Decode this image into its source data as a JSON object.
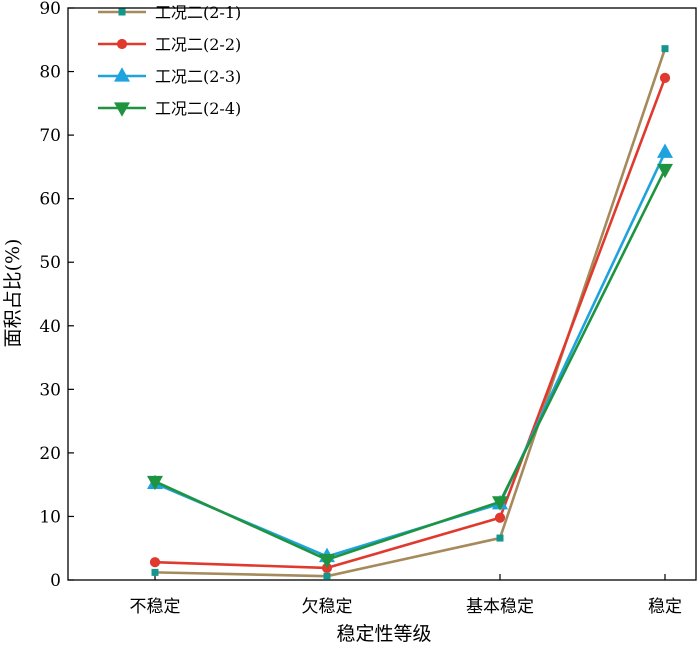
{
  "chart_data": {
    "type": "line",
    "title": "",
    "xlabel": "稳定性等级",
    "ylabel": "面积占比(%)",
    "categories": [
      "不稳定",
      "欠稳定",
      "基本稳定",
      "稳定"
    ],
    "ylim": [
      0,
      90
    ],
    "yticks": [
      0,
      10,
      20,
      30,
      40,
      50,
      60,
      70,
      80,
      90
    ],
    "grid": false,
    "legend_position": "top-left",
    "series": [
      {
        "name": "工况二(2-1)",
        "values": [
          1.2,
          0.6,
          6.6,
          83.6
        ],
        "line_color": "#a58a5c",
        "marker_color": "#14968c",
        "marker": "square"
      },
      {
        "name": "工况二(2-2)",
        "values": [
          2.8,
          1.9,
          9.8,
          79.0
        ],
        "line_color": "#e03a2f",
        "marker_color": "#e03a2f",
        "marker": "circle"
      },
      {
        "name": "工况二(2-3)",
        "values": [
          15.2,
          3.7,
          12.0,
          67.3
        ],
        "line_color": "#1fa3de",
        "marker_color": "#1fa3de",
        "marker": "triangle-up"
      },
      {
        "name": "工况二(2-4)",
        "values": [
          15.5,
          3.2,
          12.3,
          64.6
        ],
        "line_color": "#1e9440",
        "marker_color": "#1e9440",
        "marker": "triangle-down"
      }
    ]
  }
}
